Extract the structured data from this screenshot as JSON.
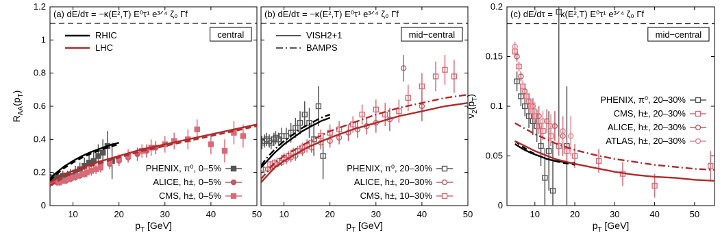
{
  "chart_data": [
    {
      "type": "line",
      "panel_title": "(a) dE/dτ = −κ(E²,T) E⁰τ¹ e³ᐟ⁴ ζ₀ Γf",
      "xlabel": "p_T [GeV]",
      "ylabel": "R_AA(p_T)",
      "xlim": [
        5,
        50
      ],
      "ylim": [
        0,
        1.2
      ],
      "xticks": [
        "10",
        "20",
        "30",
        "40",
        "50"
      ],
      "yticks": [
        "0",
        "0.2",
        "0.4",
        "0.6",
        "0.8",
        "1",
        "1.2"
      ],
      "reference_line": 1.1,
      "box_label": "central",
      "legend_top": [
        "RHIC",
        "LHC"
      ],
      "legend_bottom": [
        "PHENIX, π⁰, 0–5%",
        "ALICE, h±, 0–5%",
        "CMS, h±, 0–5%"
      ],
      "series": [
        {
          "name": "RHIC",
          "style": "solid",
          "color": "#000000",
          "x": [
            5,
            6,
            8,
            10,
            12,
            14,
            16,
            18,
            20
          ],
          "y": [
            0.16,
            0.19,
            0.235,
            0.27,
            0.3,
            0.325,
            0.345,
            0.365,
            0.38
          ]
        },
        {
          "name": "RHIC dashed",
          "style": "dash",
          "color": "#000000",
          "x": [
            5,
            6,
            8,
            10,
            12,
            14,
            16,
            18,
            20
          ],
          "y": [
            0.15,
            0.18,
            0.225,
            0.26,
            0.29,
            0.315,
            0.335,
            0.355,
            0.37
          ]
        },
        {
          "name": "LHC",
          "style": "solid",
          "color": "#b02a2a",
          "x": [
            5,
            8,
            10,
            15,
            20,
            25,
            30,
            35,
            40,
            45,
            50
          ],
          "y": [
            0.14,
            0.19,
            0.21,
            0.26,
            0.3,
            0.34,
            0.37,
            0.4,
            0.43,
            0.46,
            0.49
          ]
        },
        {
          "name": "LHC dashed",
          "style": "dash",
          "color": "#b02a2a",
          "x": [
            5,
            8,
            10,
            15,
            20,
            25,
            30,
            35,
            40,
            45,
            50
          ],
          "y": [
            0.12,
            0.17,
            0.2,
            0.25,
            0.29,
            0.33,
            0.36,
            0.39,
            0.42,
            0.45,
            0.48
          ]
        }
      ],
      "points": [
        {
          "set": "PHENIX, π⁰, 0–5%",
          "marker": "filled-square",
          "color": "#555555",
          "x": [
            5.2,
            5.8,
            6.2,
            6.8,
            7.2,
            7.8,
            8.2,
            8.8,
            9.5,
            10.5,
            11.5,
            12.5,
            13.5,
            14.5,
            15.5,
            16.5,
            17.5,
            18.5
          ],
          "y": [
            0.16,
            0.17,
            0.16,
            0.17,
            0.16,
            0.18,
            0.17,
            0.18,
            0.18,
            0.2,
            0.22,
            0.24,
            0.26,
            0.27,
            0.3,
            0.32,
            0.36,
            0.27
          ],
          "err": [
            0.03,
            0.03,
            0.03,
            0.03,
            0.03,
            0.03,
            0.03,
            0.03,
            0.04,
            0.04,
            0.04,
            0.05,
            0.05,
            0.06,
            0.07,
            0.08,
            0.09,
            0.11
          ]
        },
        {
          "set": "ALICE, h±, 0–5%",
          "marker": "filled-circle",
          "color": "#c25b65",
          "x": [
            5.5,
            6.5,
            7.5,
            8.5,
            9.5,
            10.5,
            11.5,
            12.5,
            14,
            16,
            18,
            20,
            22,
            24,
            26,
            28
          ],
          "y": [
            0.14,
            0.14,
            0.15,
            0.15,
            0.16,
            0.17,
            0.18,
            0.19,
            0.21,
            0.24,
            0.25,
            0.27,
            0.29,
            0.31,
            0.33,
            0.35
          ],
          "err": [
            0.02,
            0.02,
            0.02,
            0.02,
            0.02,
            0.02,
            0.02,
            0.02,
            0.02,
            0.03,
            0.03,
            0.03,
            0.03,
            0.04,
            0.04,
            0.04
          ]
        },
        {
          "set": "CMS, h±, 0–5%",
          "marker": "filled-square",
          "color": "#d96b78",
          "x": [
            7,
            8,
            9,
            10,
            11,
            12,
            13,
            14,
            15,
            16,
            18,
            20,
            22,
            25,
            27,
            30,
            32,
            35,
            37,
            40,
            43,
            45,
            47
          ],
          "y": [
            0.14,
            0.15,
            0.16,
            0.17,
            0.18,
            0.19,
            0.2,
            0.21,
            0.22,
            0.23,
            0.26,
            0.28,
            0.3,
            0.33,
            0.35,
            0.37,
            0.39,
            0.4,
            0.46,
            0.37,
            0.33,
            0.44,
            0.42
          ],
          "err": [
            0.02,
            0.02,
            0.02,
            0.02,
            0.02,
            0.02,
            0.03,
            0.03,
            0.03,
            0.03,
            0.03,
            0.03,
            0.04,
            0.04,
            0.05,
            0.05,
            0.05,
            0.06,
            0.06,
            0.06,
            0.07,
            0.07,
            0.07
          ]
        }
      ]
    },
    {
      "type": "line",
      "panel_title": "(b) dE/dτ = −κ(E²,T) E⁰τ¹ e³ᐟ⁴ ζ₀ Γf",
      "xlabel": "p_T [GeV]",
      "ylabel": "",
      "xlim": [
        5,
        50
      ],
      "ylim": [
        0,
        1.2
      ],
      "xticks": [
        "10",
        "20",
        "30",
        "40",
        "50"
      ],
      "yticks": [],
      "reference_line": 1.1,
      "box_label": "mid−central",
      "legend_top": [
        "VISH2+1",
        "BAMPS"
      ],
      "legend_bottom": [
        "PHENIX, π⁰, 20–30%",
        "ALICE, h±, 20–30%",
        "CMS, h±, 10–30%"
      ],
      "series": [
        {
          "name": "RHIC",
          "style": "solid",
          "color": "#000000",
          "x": [
            5,
            6,
            8,
            10,
            12,
            14,
            16,
            18,
            20
          ],
          "y": [
            0.23,
            0.26,
            0.32,
            0.37,
            0.41,
            0.45,
            0.48,
            0.51,
            0.53
          ]
        },
        {
          "name": "RHIC dashdot",
          "style": "dashdot",
          "color": "#000000",
          "x": [
            5,
            6,
            8,
            10,
            12,
            14,
            16,
            18,
            20
          ],
          "y": [
            0.24,
            0.28,
            0.34,
            0.39,
            0.43,
            0.47,
            0.5,
            0.53,
            0.55
          ]
        },
        {
          "name": "LHC",
          "style": "solid",
          "color": "#b02a2a",
          "x": [
            5,
            8,
            10,
            15,
            20,
            25,
            30,
            35,
            40,
            45,
            50
          ],
          "y": [
            0.14,
            0.23,
            0.27,
            0.35,
            0.41,
            0.46,
            0.5,
            0.54,
            0.57,
            0.6,
            0.62
          ]
        },
        {
          "name": "LHC dashdot",
          "style": "dashdot",
          "color": "#b02a2a",
          "x": [
            5,
            8,
            10,
            15,
            20,
            25,
            30,
            35,
            40,
            45,
            50
          ],
          "y": [
            0.16,
            0.26,
            0.3,
            0.38,
            0.45,
            0.5,
            0.55,
            0.59,
            0.62,
            0.65,
            0.67
          ]
        }
      ],
      "points": [
        {
          "set": "PHENIX, π⁰, 20–30%",
          "marker": "open-square",
          "color": "#555555",
          "x": [
            5.2,
            5.8,
            6.2,
            6.8,
            7.2,
            7.8,
            8.2,
            8.8,
            9.5,
            10.5,
            11.5,
            12.5,
            13.5,
            14.5,
            15.5,
            16.5,
            17.5,
            18.5
          ],
          "y": [
            0.38,
            0.39,
            0.4,
            0.39,
            0.38,
            0.4,
            0.41,
            0.4,
            0.42,
            0.42,
            0.44,
            0.47,
            0.5,
            0.55,
            0.5,
            0.4,
            0.6,
            0.3
          ],
          "err": [
            0.04,
            0.04,
            0.04,
            0.04,
            0.04,
            0.04,
            0.04,
            0.04,
            0.05,
            0.05,
            0.06,
            0.06,
            0.07,
            0.08,
            0.09,
            0.1,
            0.12,
            0.14
          ]
        },
        {
          "set": "ALICE, h±, 20–30%",
          "marker": "open-circle",
          "color": "#c25b65",
          "x": [
            5.5,
            6.5,
            7.5,
            8.5,
            9.5,
            10.5,
            11.5,
            12.5,
            14,
            16,
            18,
            20,
            22,
            24,
            26,
            28,
            30,
            33,
            36,
            40
          ],
          "y": [
            0.22,
            0.22,
            0.23,
            0.25,
            0.26,
            0.28,
            0.29,
            0.3,
            0.33,
            0.35,
            0.38,
            0.39,
            0.41,
            0.44,
            0.46,
            0.48,
            0.5,
            0.52,
            0.83,
            0.6
          ],
          "err": [
            0.02,
            0.02,
            0.02,
            0.02,
            0.02,
            0.03,
            0.03,
            0.03,
            0.03,
            0.03,
            0.04,
            0.04,
            0.04,
            0.05,
            0.05,
            0.05,
            0.06,
            0.07,
            0.08,
            0.09
          ]
        },
        {
          "set": "CMS, h±, 10–30%",
          "marker": "open-square",
          "color": "#d96b78",
          "x": [
            7,
            8,
            9,
            10,
            11,
            12,
            13,
            14,
            15,
            16,
            18,
            20,
            22,
            25,
            27,
            30,
            32,
            35,
            37,
            40,
            43,
            45,
            47
          ],
          "y": [
            0.25,
            0.26,
            0.27,
            0.29,
            0.3,
            0.32,
            0.33,
            0.35,
            0.36,
            0.38,
            0.42,
            0.44,
            0.46,
            0.49,
            0.55,
            0.58,
            0.55,
            0.57,
            0.65,
            0.72,
            0.78,
            0.82,
            0.78
          ],
          "err": [
            0.02,
            0.02,
            0.02,
            0.03,
            0.03,
            0.03,
            0.03,
            0.03,
            0.04,
            0.04,
            0.04,
            0.05,
            0.05,
            0.05,
            0.06,
            0.06,
            0.07,
            0.07,
            0.08,
            0.08,
            0.09,
            0.09,
            0.1
          ]
        }
      ]
    },
    {
      "type": "line",
      "panel_title": "(c) dE/dτ = −κ(E²,T) E⁰τ¹ e³ᐟ⁴ ζ₀ Γf",
      "xlabel": "p_T [GeV]",
      "ylabel": "v_2(p_T)",
      "xlim": [
        3,
        55
      ],
      "ylim": [
        0,
        0.2
      ],
      "xticks": [
        "10",
        "20",
        "30",
        "40",
        "50"
      ],
      "yticks": [
        "0",
        "0.05",
        "0.1",
        "0.15",
        "0.2"
      ],
      "reference_line": 0.183,
      "box_label": "mid−central",
      "legend": [
        "PHENIX, π⁰, 20–30%",
        "CMS, h±, 20–30%",
        "ALICE, h±, 20–30%",
        "ATLAS, h±, 20–30%"
      ],
      "series": [
        {
          "name": "RHIC",
          "style": "solid",
          "color": "#000000",
          "x": [
            5,
            7,
            9,
            11,
            13,
            15,
            17,
            19,
            20
          ],
          "y": [
            0.062,
            0.057,
            0.053,
            0.05,
            0.047,
            0.045,
            0.044,
            0.043,
            0.043
          ]
        },
        {
          "name": "RHIC dashed",
          "style": "dash",
          "color": "#000000",
          "x": [
            5,
            7,
            9,
            11,
            13,
            15,
            17,
            19,
            20
          ],
          "y": [
            0.065,
            0.059,
            0.054,
            0.05,
            0.047,
            0.045,
            0.043,
            0.042,
            0.041
          ]
        },
        {
          "name": "LHC",
          "style": "solid",
          "color": "#b02a2a",
          "x": [
            5,
            10,
            15,
            20,
            25,
            30,
            35,
            40,
            45,
            50,
            55
          ],
          "y": [
            0.065,
            0.055,
            0.047,
            0.042,
            0.038,
            0.034,
            0.031,
            0.029,
            0.028,
            0.026,
            0.025
          ]
        },
        {
          "name": "LHC dashdot",
          "style": "dashdot",
          "color": "#b02a2a",
          "x": [
            5,
            10,
            15,
            20,
            25,
            30,
            35,
            40,
            45,
            50,
            55
          ],
          "y": [
            0.083,
            0.072,
            0.063,
            0.056,
            0.051,
            0.047,
            0.044,
            0.041,
            0.039,
            0.037,
            0.036
          ]
        }
      ],
      "points": [
        {
          "set": "PHENIX, π⁰, 20–30%",
          "marker": "open-square",
          "color": "#555555",
          "x": [
            5.5,
            6.5,
            7.5,
            8.5,
            9.5,
            10.5,
            11.5,
            12.5,
            13.5,
            14.5,
            16,
            18
          ],
          "y": [
            0.125,
            0.11,
            0.1,
            0.09,
            0.085,
            0.08,
            0.06,
            0.028,
            0.055,
            0.015,
            0.195,
            0.06
          ],
          "err": [
            0.01,
            0.01,
            0.01,
            0.012,
            0.014,
            0.016,
            0.02,
            0.03,
            0.04,
            0.05,
            0.14,
            0.06
          ]
        },
        {
          "set": "CMS, h±, 20–30%",
          "marker": "open-square",
          "color": "#d96b78",
          "x": [
            5,
            6,
            7,
            8,
            9,
            10,
            11,
            12,
            14,
            16,
            18,
            20,
            26,
            32,
            40,
            54
          ],
          "y": [
            0.155,
            0.14,
            0.12,
            0.11,
            0.1,
            0.09,
            0.08,
            0.075,
            0.07,
            0.06,
            0.055,
            0.05,
            0.045,
            0.032,
            0.02,
            0.04
          ],
          "err": [
            0.005,
            0.005,
            0.005,
            0.006,
            0.007,
            0.007,
            0.008,
            0.009,
            0.01,
            0.01,
            0.01,
            0.012,
            0.012,
            0.012,
            0.012,
            0.015
          ]
        },
        {
          "set": "ALICE, h±, 20–30%",
          "marker": "open-circle",
          "color": "#c25b65",
          "x": [
            5.5,
            6.5,
            7.5,
            8.5,
            9.5,
            11,
            13,
            15,
            17
          ],
          "y": [
            0.15,
            0.13,
            0.115,
            0.105,
            0.1,
            0.09,
            0.085,
            0.08,
            0.07
          ],
          "err": [
            0.005,
            0.005,
            0.006,
            0.007,
            0.008,
            0.01,
            0.012,
            0.015,
            0.02
          ]
        },
        {
          "set": "ATLAS, h±, 20–30%",
          "marker": "open-circle",
          "color": "#e08a93",
          "x": [
            5,
            6,
            7,
            8,
            9,
            10,
            12,
            14,
            17,
            19
          ],
          "y": [
            0.16,
            0.14,
            0.12,
            0.11,
            0.1,
            0.095,
            0.085,
            0.08,
            0.075,
            0.07
          ],
          "err": [
            0.005,
            0.005,
            0.006,
            0.007,
            0.008,
            0.009,
            0.01,
            0.012,
            0.015,
            0.02
          ]
        }
      ]
    }
  ]
}
